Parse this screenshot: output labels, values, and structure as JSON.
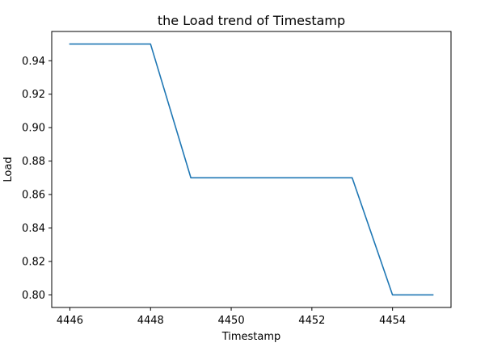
{
  "chart_data": {
    "type": "line",
    "title": "the Load trend of Timestamp",
    "xlabel": "Timestamp",
    "ylabel": "Load",
    "x": [
      4446,
      4447,
      4448,
      4449,
      4450,
      4451,
      4452,
      4453,
      4454,
      4455
    ],
    "series": [
      {
        "values": [
          0.95,
          0.95,
          0.95,
          0.87,
          0.87,
          0.87,
          0.87,
          0.87,
          0.8,
          0.8
        ],
        "color": "#1f77b4"
      }
    ],
    "xlim": [
      4445.55,
      4455.45
    ],
    "ylim": [
      0.7925,
      0.9575
    ],
    "xticks": [
      4446,
      4448,
      4450,
      4452,
      4454
    ],
    "yticks": [
      0.8,
      0.82,
      0.84,
      0.86,
      0.88,
      0.9,
      0.92,
      0.94
    ],
    "xtick_labels": [
      "4446",
      "4448",
      "4450",
      "4452",
      "4454"
    ],
    "ytick_labels": [
      "0.80",
      "0.82",
      "0.84",
      "0.86",
      "0.88",
      "0.90",
      "0.92",
      "0.94"
    ],
    "grid": false,
    "legend": false
  }
}
